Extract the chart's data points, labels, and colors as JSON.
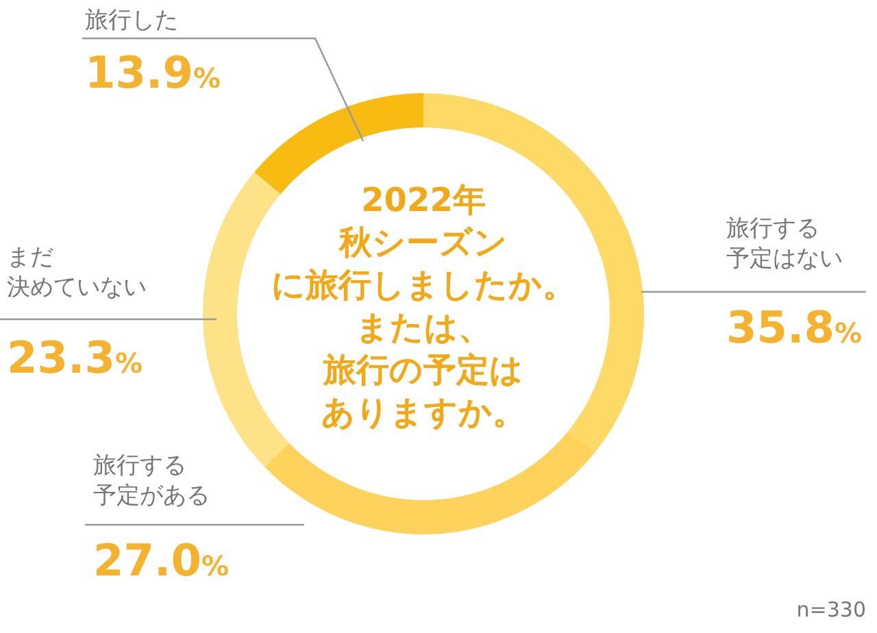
{
  "chart_data": {
    "type": "donut",
    "title": "2022年秋シーズンに旅行しましたか。または、旅行の予定はありますか。",
    "categories": [
      "旅行する予定はない",
      "旅行する予定がある",
      "まだ決めていない",
      "旅行した"
    ],
    "values": [
      35.8,
      27.0,
      23.3,
      13.9
    ],
    "value_labels": [
      "35.8%",
      "27.0%",
      "23.3%",
      "13.9%"
    ],
    "colors": [
      "#fdd966",
      "#fdd35c",
      "#fde288",
      "#f8bb12"
    ],
    "annotations": [
      "n=330"
    ]
  }
}
